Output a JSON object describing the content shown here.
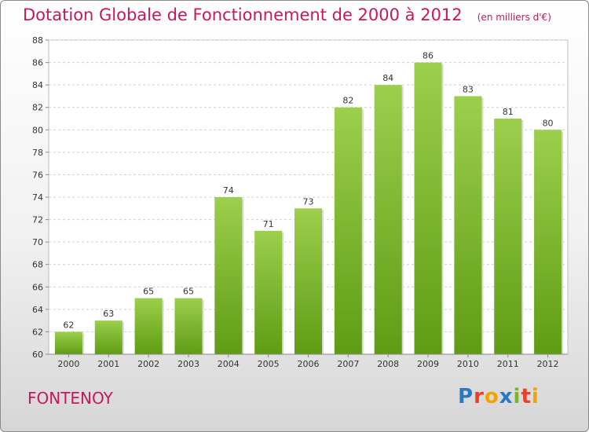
{
  "title": "Dotation Globale de Fonctionnement de 2000 à 2012",
  "subtitle": "(en milliers d'€)",
  "commune": "FONTENOY",
  "logo": {
    "text": "Proxiti",
    "letters": [
      {
        "char": "P",
        "color": "#2b78c2"
      },
      {
        "char": "r",
        "color": "#e8412b"
      },
      {
        "char": "o",
        "color": "#f2a300"
      },
      {
        "char": "x",
        "color": "#2b78c2"
      },
      {
        "char": "i",
        "color": "#7bb52a"
      },
      {
        "char": "t",
        "color": "#e8412b"
      },
      {
        "char": "i",
        "color": "#f2a300"
      }
    ]
  },
  "colors": {
    "title": "#c8175d",
    "bar_top": "#9ccf4c",
    "bar_bottom": "#5f9c14",
    "grid": "#cfcfcf",
    "axis_text": "#333333"
  },
  "chart_data": {
    "type": "bar",
    "categories": [
      "2000",
      "2001",
      "2002",
      "2003",
      "2004",
      "2005",
      "2006",
      "2007",
      "2008",
      "2009",
      "2010",
      "2011",
      "2012"
    ],
    "values": [
      62,
      63,
      65,
      65,
      74,
      71,
      73,
      82,
      84,
      86,
      83,
      81,
      80
    ],
    "ylim": [
      60,
      88
    ],
    "yticks": [
      60,
      62,
      64,
      66,
      68,
      70,
      72,
      74,
      76,
      78,
      80,
      82,
      84,
      86,
      88
    ],
    "grid": true,
    "data_labels": true
  }
}
